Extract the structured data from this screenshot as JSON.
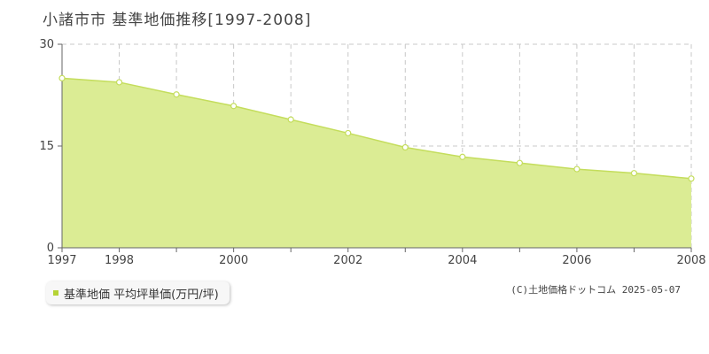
{
  "title": "小諸市市 基準地価推移[1997-2008]",
  "legend": {
    "label": "基準地価 平均坪単価(万円/坪)"
  },
  "copyright": "(C)土地価格ドットコム 2025-05-07",
  "colors": {
    "fill": "#dbec94",
    "line": "#c4dd5c",
    "marker_fill": "#ffffff",
    "marker_stroke": "#c4dd5c",
    "swatch": "#b5d335"
  },
  "chart_data": {
    "type": "area",
    "title": "小諸市市 基準地価推移[1997-2008]",
    "x": [
      1997,
      1998,
      1999,
      2000,
      2001,
      2002,
      2003,
      2004,
      2005,
      2006,
      2007,
      2008
    ],
    "series": [
      {
        "name": "基準地価 平均坪単価(万円/坪)",
        "values": [
          25.0,
          24.4,
          22.6,
          20.9,
          18.9,
          16.9,
          14.8,
          13.4,
          12.5,
          11.6,
          11.0,
          10.2
        ]
      }
    ],
    "xlim": [
      1997,
      2008
    ],
    "ylim": [
      0,
      30
    ],
    "yticks": [
      0,
      15,
      30
    ],
    "xticks_labeled": [
      1997,
      1998,
      2000,
      2002,
      2004,
      2006,
      2008
    ],
    "grid": true,
    "legend_position": "bottom-left"
  }
}
